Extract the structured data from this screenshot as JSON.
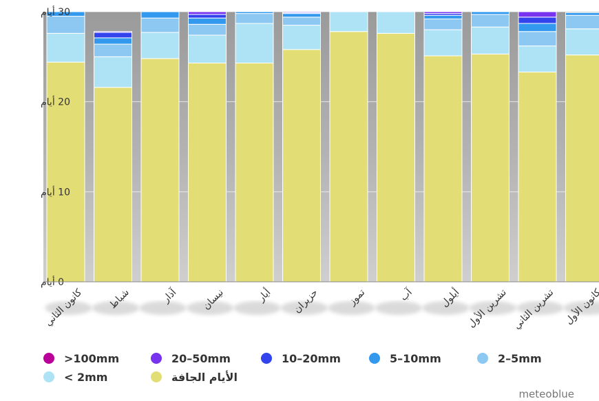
{
  "chart_data": {
    "type": "bar",
    "stacked": true,
    "categories": [
      "كانون الثاني",
      "شباط",
      "آذار",
      "نيسان",
      "أيار",
      "حزيران",
      "تموز",
      "آب",
      "أيلول",
      "تشرين الأول",
      "تشرين الثاني",
      "كانون الأول"
    ],
    "y_ticks": [
      {
        "value": 0,
        "label": "0 أيام"
      },
      {
        "value": 10,
        "label": "10 أيام"
      },
      {
        "value": 20,
        "label": "20 أيام"
      },
      {
        "value": 30,
        "label": "30 أيام"
      }
    ],
    "ylim": [
      0,
      30
    ],
    "grid": true,
    "legend_position": "bottom",
    "series": [
      {
        "name": "الأيام الجافة",
        "color": "#e3dd76",
        "values": [
          24.4,
          21.6,
          24.8,
          24.3,
          24.3,
          25.8,
          27.8,
          27.6,
          25.1,
          25.3,
          23.3,
          25.2
        ]
      },
      {
        "name": "< 2mm",
        "color": "#ade3f5",
        "values": [
          3.2,
          3.4,
          2.9,
          3.1,
          4.4,
          2.7,
          2.2,
          2.4,
          2.9,
          3.0,
          2.9,
          2.9
        ]
      },
      {
        "name": "2–5mm",
        "color": "#8cc8f2",
        "values": [
          1.9,
          1.4,
          1.6,
          1.2,
          1.1,
          0.9,
          0.0,
          0.0,
          1.2,
          1.4,
          1.6,
          1.5
        ]
      },
      {
        "name": "5–10mm",
        "color": "#3399ee",
        "values": [
          0.5,
          0.7,
          0.7,
          0.7,
          0.2,
          0.4,
          0.0,
          0.0,
          0.4,
          0.3,
          0.9,
          0.3
        ]
      },
      {
        "name": "10–20mm",
        "color": "#3344ee",
        "values": [
          0.0,
          0.6,
          0.0,
          0.4,
          0.0,
          0.1,
          0.0,
          0.0,
          0.2,
          0.0,
          0.7,
          0.0
        ]
      },
      {
        "name": "20–50mm",
        "color": "#7733ee",
        "values": [
          0.0,
          0.1,
          0.0,
          0.3,
          0.0,
          0.1,
          0.0,
          0.0,
          0.2,
          0.0,
          0.6,
          0.0
        ]
      },
      {
        "name": ">100mm",
        "color": "#bb0099",
        "values": [
          0,
          0,
          0,
          0,
          0,
          0,
          0,
          0,
          0,
          0,
          0,
          0
        ]
      }
    ],
    "legend": [
      {
        "label": ">100mm",
        "color": "#bb0099"
      },
      {
        "label": "20–50mm",
        "color": "#7733ee"
      },
      {
        "label": "10–20mm",
        "color": "#3344ee"
      },
      {
        "label": "5–10mm",
        "color": "#3399ee"
      },
      {
        "label": "2–5mm",
        "color": "#8cc8f2"
      },
      {
        "label": "< 2mm",
        "color": "#ade3f5"
      },
      {
        "label": "الأيام الجافة",
        "color": "#e3dd76"
      }
    ],
    "credit": "meteoblue"
  }
}
